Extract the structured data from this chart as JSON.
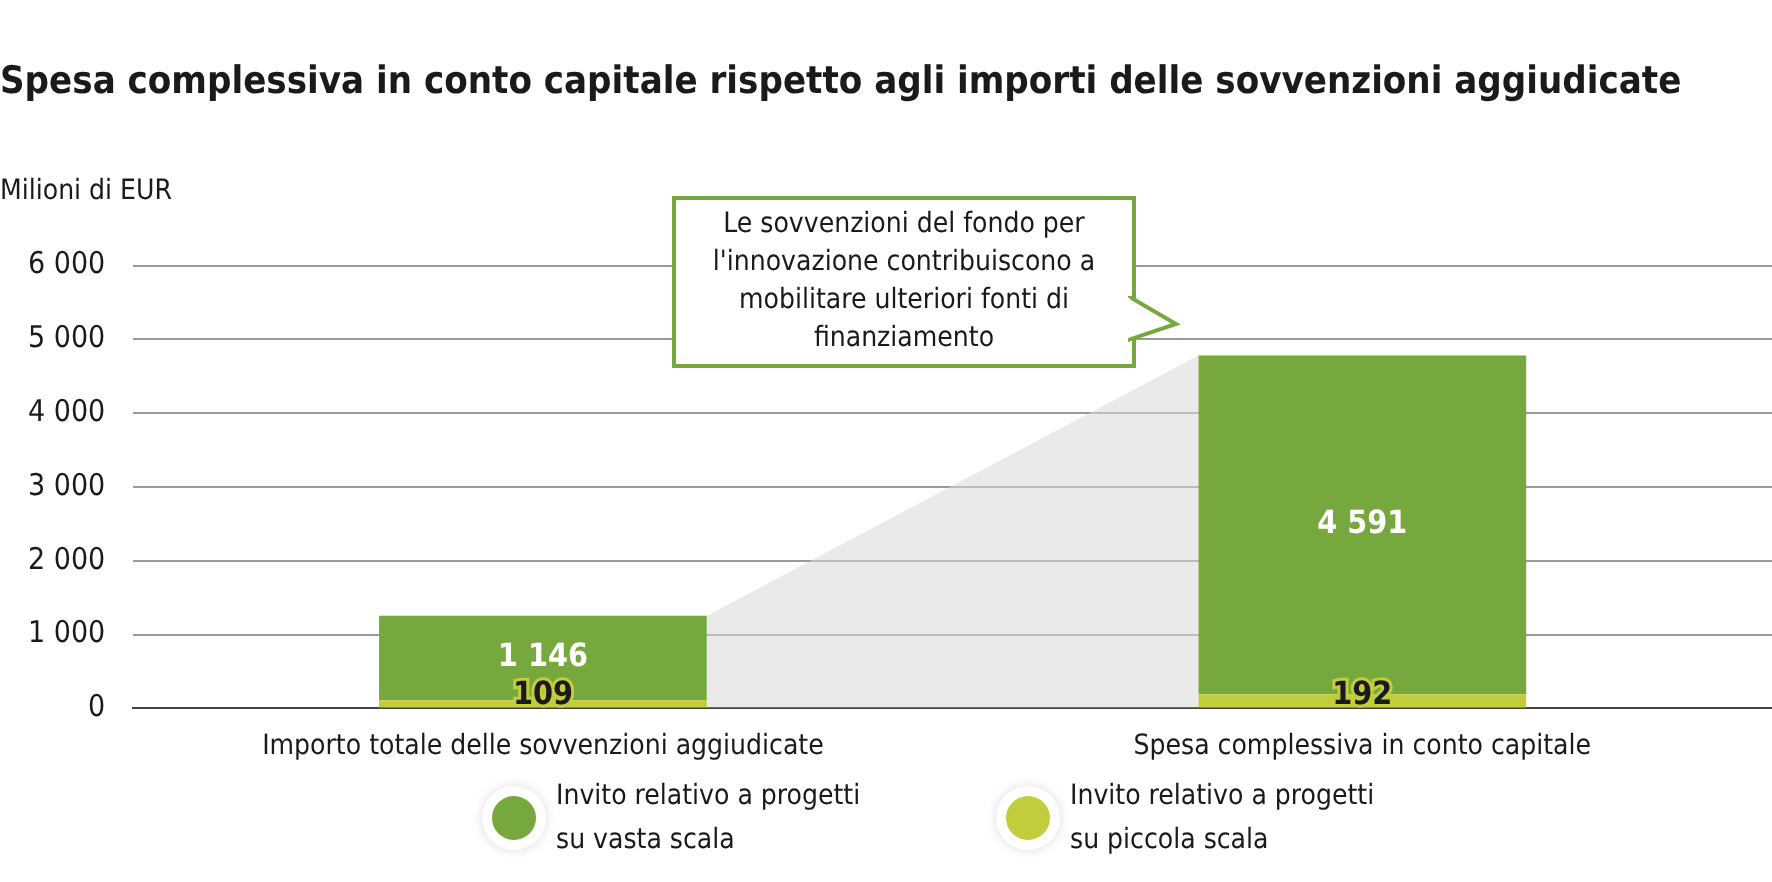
{
  "chart_data": {
    "type": "bar",
    "title": "Spesa complessiva in conto capitale rispetto agli importi delle sovvenzioni aggiudicate",
    "ylabel": "Milioni di EUR",
    "categories": [
      "Importo totale delle sovvenzioni aggiudicate",
      "Spesa complessiva in conto capitale"
    ],
    "stacked": true,
    "series": [
      {
        "name": "Invito relativo a progetti su piccola scala",
        "color": "#c1cd3a",
        "values": [
          109,
          192
        ],
        "value_labels": [
          "109",
          "192"
        ]
      },
      {
        "name": "Invito relativo a progetti su vasta scala",
        "color": "#76a83e",
        "values": [
          1146,
          4591
        ],
        "value_labels": [
          "1 146",
          "4 591"
        ]
      }
    ],
    "ylim": [
      0,
      6000
    ],
    "yticks": [
      {
        "value": 0,
        "label": "0"
      },
      {
        "value": 1000,
        "label": "1 000"
      },
      {
        "value": 2000,
        "label": "2 000"
      },
      {
        "value": 3000,
        "label": "3 000"
      },
      {
        "value": 4000,
        "label": "4 000"
      },
      {
        "value": 5000,
        "label": "5 000"
      },
      {
        "value": 6000,
        "label": "6 000"
      }
    ],
    "grid": "y",
    "legend": "bottom",
    "annotations": [
      "Le sovvenzioni del fondo per l'innovazione contribuiscono a mobilitare ulteriori fonti di finanziamento"
    ]
  }
}
